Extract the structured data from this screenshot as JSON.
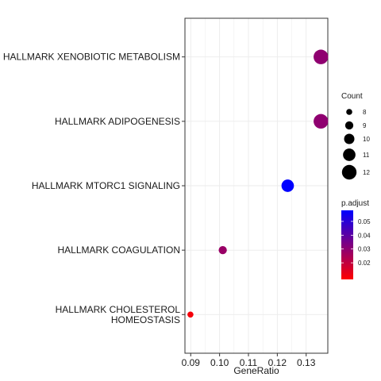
{
  "chart_data": {
    "type": "scatter",
    "title": "",
    "xlabel": "GeneRatio",
    "ylabel": "",
    "xlim": [
      0.088,
      0.1375
    ],
    "x_ticks": [
      0.09,
      0.1,
      0.11,
      0.12,
      0.13
    ],
    "x_tick_labels": [
      "0.09",
      "0.10",
      "0.11",
      "0.12",
      "0.13"
    ],
    "grid": true,
    "legend_placement": "right",
    "categories": [
      "HALLMARK XENOBIOTIC METABOLISM",
      "HALLMARK ADIPOGENESIS",
      "HALLMARK MTORC1 SIGNALING",
      "HALLMARK COAGULATION",
      "HALLMARK CHOLESTEROL HOMEOSTASIS"
    ],
    "category_lines": [
      [
        "HALLMARK XENOBIOTIC METABOLISM"
      ],
      [
        "HALLMARK ADIPOGENESIS"
      ],
      [
        "HALLMARK MTORC1 SIGNALING"
      ],
      [
        "HALLMARK COAGULATION"
      ],
      [
        "HALLMARK CHOLESTEROL",
        "HOMEOSTASIS"
      ]
    ],
    "points": [
      {
        "category": "HALLMARK XENOBIOTIC METABOLISM",
        "gene_ratio": 0.1351,
        "count": 12,
        "p_adjust": 0.03
      },
      {
        "category": "HALLMARK ADIPOGENESIS",
        "gene_ratio": 0.1351,
        "count": 12,
        "p_adjust": 0.03
      },
      {
        "category": "HALLMARK MTORC1 SIGNALING",
        "gene_ratio": 0.1236,
        "count": 11,
        "p_adjust": 0.058
      },
      {
        "category": "HALLMARK COAGULATION",
        "gene_ratio": 0.1011,
        "count": 9,
        "p_adjust": 0.028
      },
      {
        "category": "HALLMARK CHOLESTEROL HOMEOSTASIS",
        "gene_ratio": 0.0899,
        "count": 8,
        "p_adjust": 0.01
      }
    ],
    "size_legend": {
      "title": "Count",
      "values": [
        8,
        9,
        10,
        11,
        12
      ],
      "labels": [
        "8",
        "9",
        "10",
        "11",
        "12"
      ]
    },
    "color_legend": {
      "title": "p.adjust",
      "range": [
        0.008,
        0.058
      ],
      "ticks": [
        0.02,
        0.03,
        0.04,
        0.05
      ],
      "tick_labels": [
        "0.02",
        "0.03",
        "0.04",
        "0.05"
      ],
      "low_color": "#ff0000",
      "high_color": "#0000ff"
    },
    "colors": {
      "panel_border": "#333333",
      "grid": "#ebebeb"
    }
  }
}
